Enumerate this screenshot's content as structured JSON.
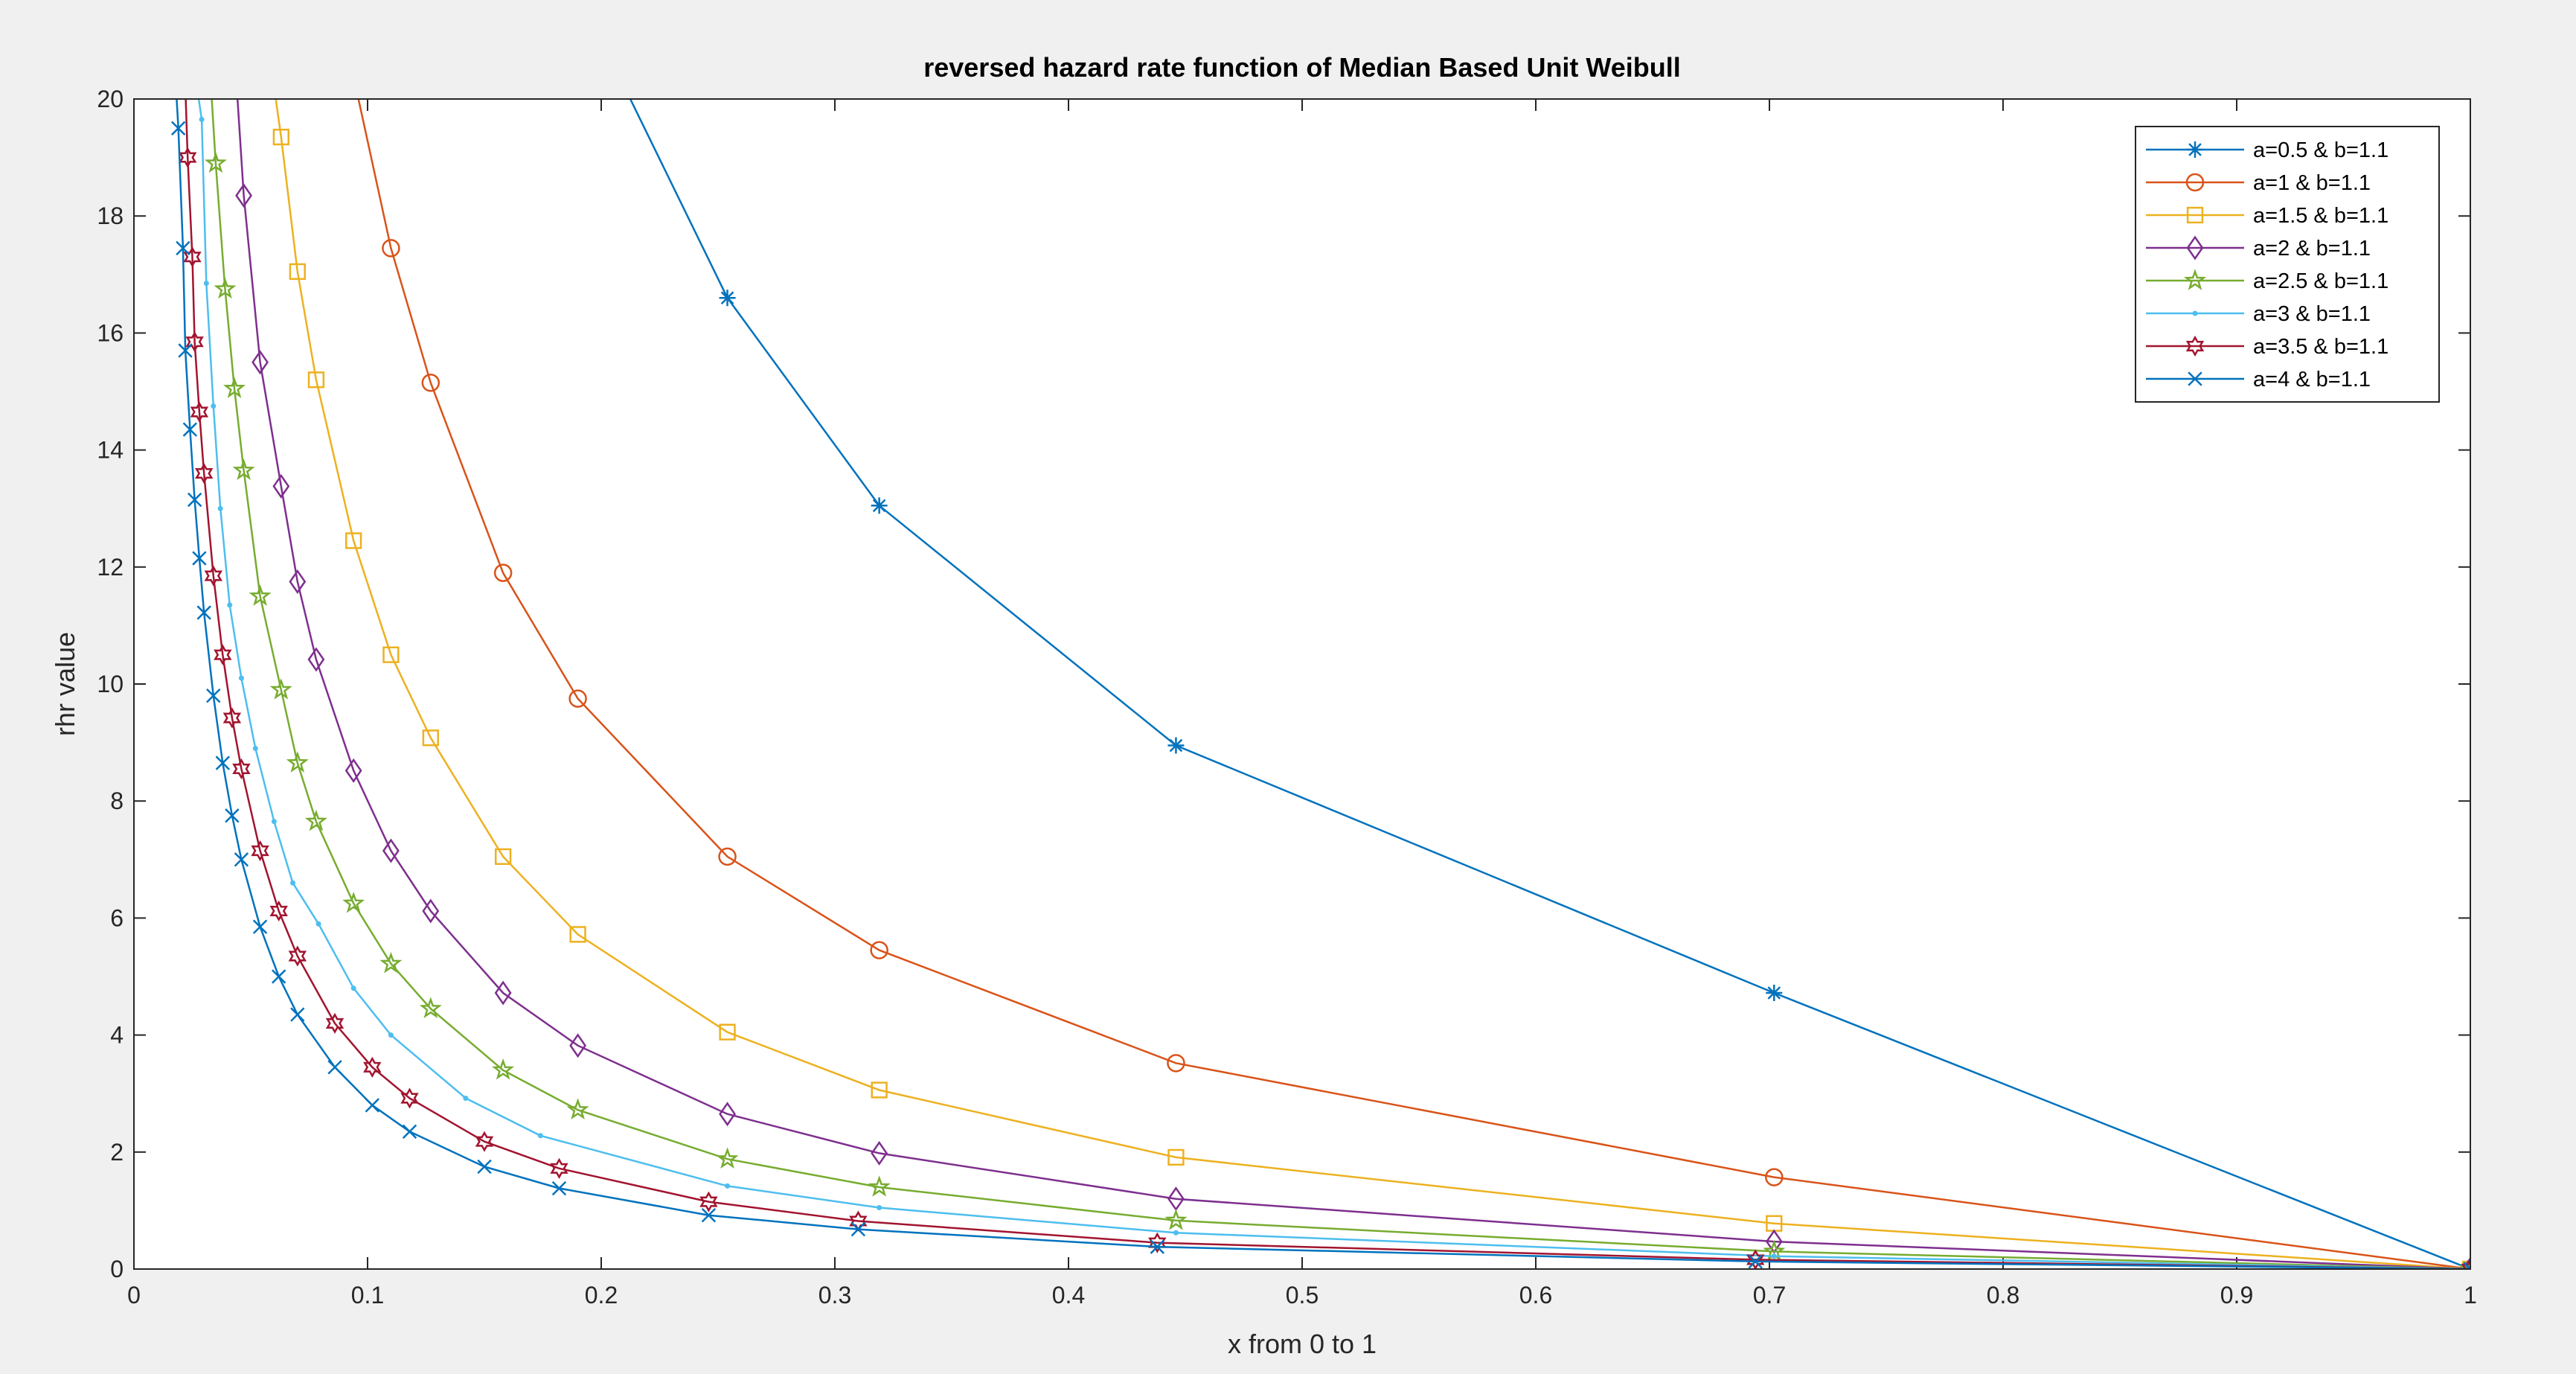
{
  "chart_data": {
    "type": "line",
    "title": "reversed hazard rate function of Median Based Unit Weibull",
    "xlabel": "x from 0 to 1",
    "ylabel": "rhr value",
    "xlim": [
      0,
      1
    ],
    "ylim": [
      0,
      20
    ],
    "xticks": [
      "0",
      "0.1",
      "0.2",
      "0.3",
      "0.4",
      "0.5",
      "0.6",
      "0.7",
      "0.8",
      "0.9",
      "1"
    ],
    "yticks": [
      "0",
      "2",
      "4",
      "6",
      "8",
      "10",
      "12",
      "14",
      "16",
      "18",
      "20"
    ],
    "grid": false,
    "legend_position": "top-right",
    "series": [
      {
        "name": "a=0.5  &  b=1.1",
        "color": "#0072BD",
        "marker": "asterisk",
        "x": [
          0.21,
          0.254,
          0.319,
          0.446,
          0.702,
          1.0
        ],
        "y": [
          20.2,
          16.6,
          13.05,
          8.95,
          4.72,
          0.0
        ]
      },
      {
        "name": "a=1 &  b=1.1",
        "color": "#D95319",
        "marker": "circle",
        "x": [
          0.095,
          0.11,
          0.127,
          0.158,
          0.19,
          0.254,
          0.319,
          0.446,
          0.702,
          1.0
        ],
        "y": [
          20.2,
          17.45,
          15.15,
          11.9,
          9.75,
          7.05,
          5.45,
          3.52,
          1.57,
          0.0
        ]
      },
      {
        "name": "a=1.5  &  b=1.1",
        "color": "#EDB120",
        "marker": "square",
        "x": [
          0.06,
          0.063,
          0.07,
          0.078,
          0.094,
          0.11,
          0.127,
          0.158,
          0.19,
          0.254,
          0.319,
          0.446,
          0.702,
          1.0
        ],
        "y": [
          20.2,
          19.35,
          17.05,
          15.2,
          12.45,
          10.5,
          9.08,
          7.05,
          5.72,
          4.05,
          3.06,
          1.91,
          0.78,
          0.0
        ]
      },
      {
        "name": "a=2  &  b=1.1",
        "color": "#7E2F8E",
        "marker": "diamond",
        "x": [
          0.044,
          0.047,
          0.054,
          0.063,
          0.07,
          0.078,
          0.094,
          0.11,
          0.127,
          0.158,
          0.19,
          0.254,
          0.319,
          0.446,
          0.702,
          1.0
        ],
        "y": [
          20.2,
          18.35,
          15.5,
          13.38,
          11.75,
          10.42,
          8.52,
          7.15,
          6.12,
          4.72,
          3.82,
          2.65,
          1.98,
          1.2,
          0.47,
          0.0
        ]
      },
      {
        "name": "a=2.5  &  b=1.1",
        "color": "#77AC30",
        "marker": "pentagram",
        "x": [
          0.033,
          0.035,
          0.039,
          0.043,
          0.047,
          0.054,
          0.063,
          0.07,
          0.078,
          0.094,
          0.11,
          0.127,
          0.158,
          0.19,
          0.254,
          0.319,
          0.446,
          0.702,
          1.0
        ],
        "y": [
          20.2,
          18.9,
          16.75,
          15.05,
          13.65,
          11.5,
          9.9,
          8.65,
          7.65,
          6.25,
          5.22,
          4.45,
          3.4,
          2.72,
          1.88,
          1.4,
          0.83,
          0.3,
          0.0
        ]
      },
      {
        "name": "a=3 &  b=1.1",
        "color": "#4DBEEE",
        "marker": "point",
        "x": [
          0.027,
          0.029,
          0.031,
          0.034,
          0.037,
          0.041,
          0.046,
          0.052,
          0.06,
          0.068,
          0.079,
          0.094,
          0.11,
          0.142,
          0.174,
          0.254,
          0.319,
          0.446,
          0.702,
          1.0
        ],
        "y": [
          20.2,
          19.65,
          16.85,
          14.75,
          13.0,
          11.35,
          10.1,
          8.9,
          7.65,
          6.6,
          5.9,
          4.8,
          4.0,
          2.92,
          2.28,
          1.42,
          1.05,
          0.62,
          0.22,
          0.0
        ]
      },
      {
        "name": "a=3.5  &  b=1.1",
        "color": "#A2142F",
        "marker": "hexagram",
        "x": [
          0.022,
          0.023,
          0.025,
          0.026,
          0.028,
          0.03,
          0.034,
          0.038,
          0.042,
          0.046,
          0.054,
          0.062,
          0.07,
          0.086,
          0.102,
          0.118,
          0.15,
          0.182,
          0.246,
          0.31,
          0.438,
          0.694,
          1.0
        ],
        "y": [
          20.2,
          19.0,
          17.3,
          15.85,
          14.65,
          13.6,
          11.85,
          10.5,
          9.42,
          8.55,
          7.15,
          6.12,
          5.35,
          4.2,
          3.45,
          2.92,
          2.18,
          1.72,
          1.15,
          0.82,
          0.45,
          0.16,
          0.0
        ]
      },
      {
        "name": "a=4  &   b=1.1",
        "color": "#0072BD",
        "marker": "x",
        "x": [
          0.018,
          0.019,
          0.021,
          0.022,
          0.024,
          0.026,
          0.028,
          0.03,
          0.034,
          0.038,
          0.042,
          0.046,
          0.054,
          0.062,
          0.07,
          0.086,
          0.102,
          0.118,
          0.15,
          0.182,
          0.246,
          0.31,
          0.438,
          0.694,
          1.0
        ],
        "y": [
          20.2,
          19.5,
          17.45,
          15.7,
          14.35,
          13.15,
          12.15,
          11.22,
          9.8,
          8.65,
          7.75,
          7.0,
          5.85,
          5.0,
          4.35,
          3.45,
          2.8,
          2.35,
          1.75,
          1.38,
          0.92,
          0.68,
          0.38,
          0.13,
          0.0
        ]
      }
    ]
  }
}
